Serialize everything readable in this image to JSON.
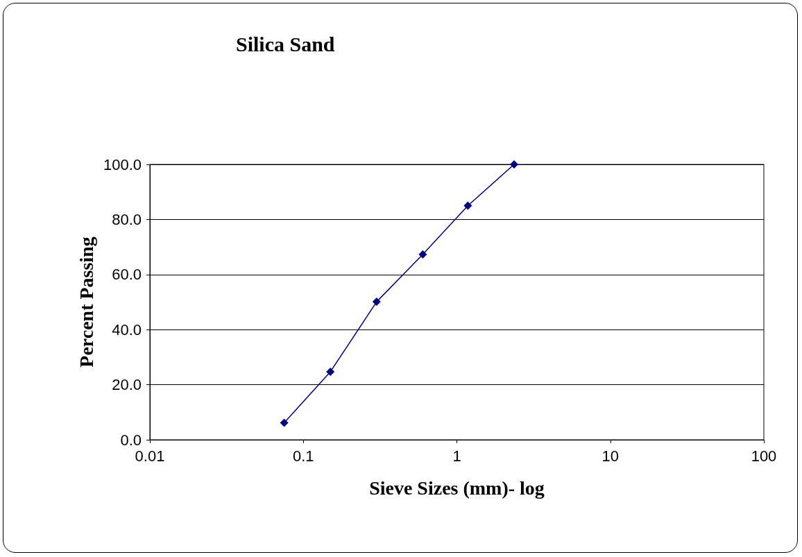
{
  "chart_data": {
    "type": "line",
    "title": "Silica Sand",
    "xlabel": "Sieve Sizes (mm)- log",
    "ylabel": "Percent Passing",
    "x": [
      0.075,
      0.15,
      0.3,
      0.6,
      1.18,
      2.36
    ],
    "series": [
      {
        "color": "#000080",
        "values": [
          6.2,
          24.7,
          50.1,
          67.3,
          85.0,
          100.0
        ]
      }
    ],
    "log": "x",
    "xlim": [
      0.01,
      100
    ],
    "xticks": [
      0.01,
      0.1,
      1,
      10,
      100
    ],
    "ylim": [
      0,
      100
    ],
    "yticks": [
      {
        "value": 0,
        "label": "0.0"
      },
      {
        "value": 20,
        "label": "20.0"
      },
      {
        "value": 40,
        "label": "40.0"
      },
      {
        "value": 60,
        "label": "60.0"
      },
      {
        "value": 80,
        "label": "80.0"
      },
      {
        "value": 100,
        "label": "100.0"
      }
    ],
    "grid": "y",
    "marker": "diamond",
    "line_style": "solid"
  }
}
